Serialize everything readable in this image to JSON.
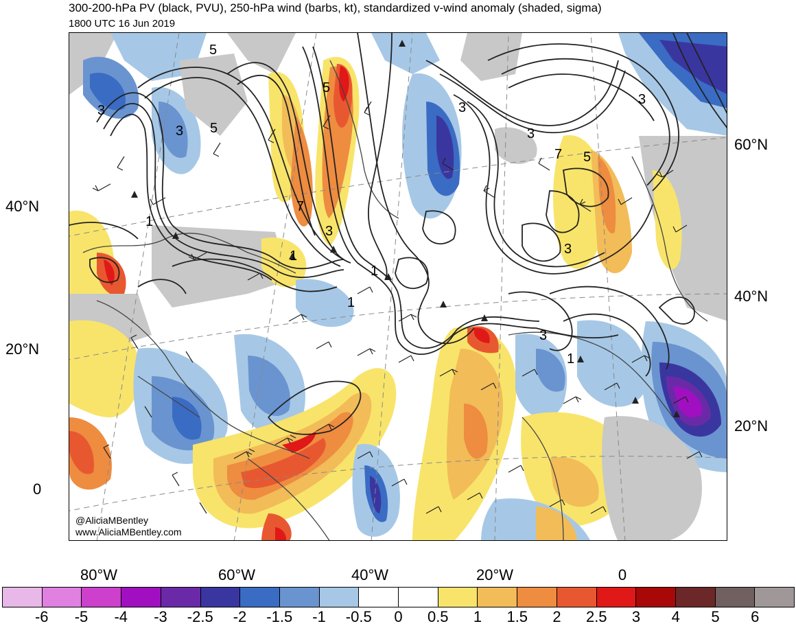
{
  "header": {
    "title": "300-200-hPa PV (black, PVU), 250-hPa wind (barbs, kt), standardized v-wind anomaly (shaded, sigma)",
    "subtitle": "1800 UTC 16 Jun 2019"
  },
  "axes": {
    "left_lat_labels": [
      "40°N",
      "20°N",
      "0"
    ],
    "right_lat_labels": [
      "60°N",
      "40°N",
      "20°N"
    ],
    "lon_labels": [
      "80°W",
      "60°W",
      "40°W",
      "20°W",
      "0"
    ]
  },
  "contour_labels": [
    "5",
    "3",
    "5",
    "3",
    "5",
    "3",
    "1",
    "7",
    "3",
    "1",
    "1",
    "3",
    "3",
    "5",
    "7",
    "3",
    "3",
    "1",
    "1"
  ],
  "credits": {
    "handle": "@AliciaMBentley",
    "website": "www.AliciaMBentley.com"
  },
  "colorbar": {
    "colors": [
      "#e8b8e8",
      "#e080e0",
      "#cc40cc",
      "#a010c0",
      "#6a2aa8",
      "#3a36a0",
      "#3a6cc4",
      "#6a94d0",
      "#a6c8e6",
      "#ffffff",
      "#ffffff",
      "#f8e46a",
      "#f2bc58",
      "#ee8c40",
      "#e85830",
      "#e01818",
      "#a80808",
      "#6c2828",
      "#706060",
      "#a09898"
    ],
    "tick_labels": [
      "-6",
      "-5",
      "-4",
      "-3",
      "-2.5",
      "-2",
      "-1.5",
      "-1",
      "-0.5",
      "0",
      "0.5",
      "1",
      "1.5",
      "2",
      "2.5",
      "3",
      "4",
      "5",
      "6"
    ]
  }
}
